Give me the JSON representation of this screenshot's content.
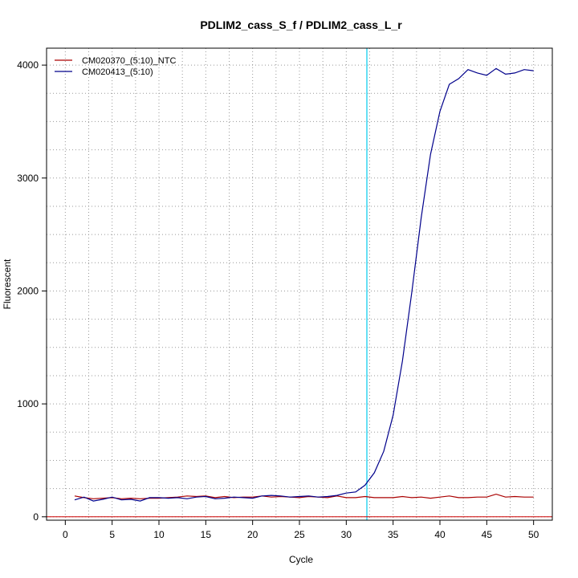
{
  "chart_data": {
    "type": "line",
    "title": "PDLIM2_cass_S_f / PDLIM2_cass_L_r",
    "xlabel": "Cycle",
    "ylabel": "Fluorescent",
    "xlim": [
      -2,
      52
    ],
    "ylim": [
      -30,
      4150
    ],
    "x_ticks": [
      0,
      5,
      10,
      15,
      20,
      25,
      30,
      35,
      40,
      45,
      50
    ],
    "y_ticks": [
      0,
      1000,
      2000,
      3000,
      4000
    ],
    "grid": true,
    "legend_position": "top-left",
    "threshold_x": 32.2,
    "threshold_color": "#00ccee",
    "baseline_color": "#cc0000",
    "series": [
      {
        "name": "CM020370_(5:10)_NTC",
        "color": "#aa0000",
        "x": [
          1,
          2,
          3,
          4,
          5,
          6,
          7,
          8,
          9,
          10,
          11,
          12,
          13,
          14,
          15,
          16,
          17,
          18,
          19,
          20,
          21,
          22,
          23,
          24,
          25,
          26,
          27,
          28,
          29,
          30,
          31,
          32,
          33,
          34,
          35,
          36,
          37,
          38,
          39,
          40,
          41,
          42,
          43,
          44,
          45,
          46,
          47,
          48,
          49,
          50
        ],
        "values": [
          185,
          170,
          160,
          165,
          170,
          160,
          165,
          160,
          165,
          165,
          170,
          175,
          185,
          180,
          185,
          170,
          180,
          170,
          175,
          175,
          185,
          175,
          180,
          175,
          170,
          180,
          175,
          170,
          185,
          170,
          170,
          180,
          170,
          170,
          170,
          180,
          170,
          175,
          165,
          175,
          185,
          170,
          170,
          175,
          175,
          200,
          175,
          180,
          175,
          175
        ]
      },
      {
        "name": "CM020413_(5:10)",
        "color": "#00008b",
        "x": [
          1,
          2,
          3,
          4,
          5,
          6,
          7,
          8,
          9,
          10,
          11,
          12,
          13,
          14,
          15,
          16,
          17,
          18,
          19,
          20,
          21,
          22,
          23,
          24,
          25,
          26,
          27,
          28,
          29,
          30,
          31,
          32,
          33,
          34,
          35,
          36,
          37,
          38,
          39,
          40,
          41,
          42,
          43,
          44,
          45,
          46,
          47,
          48,
          49,
          50
        ],
        "values": [
          150,
          175,
          140,
          155,
          175,
          150,
          155,
          140,
          170,
          170,
          165,
          170,
          160,
          175,
          180,
          160,
          165,
          175,
          170,
          165,
          185,
          190,
          185,
          175,
          180,
          185,
          175,
          180,
          190,
          210,
          220,
          280,
          390,
          580,
          900,
          1380,
          1990,
          2650,
          3210,
          3590,
          3830,
          3880,
          3960,
          3930,
          3910,
          3970,
          3920,
          3930,
          3960,
          3950
        ]
      }
    ]
  }
}
